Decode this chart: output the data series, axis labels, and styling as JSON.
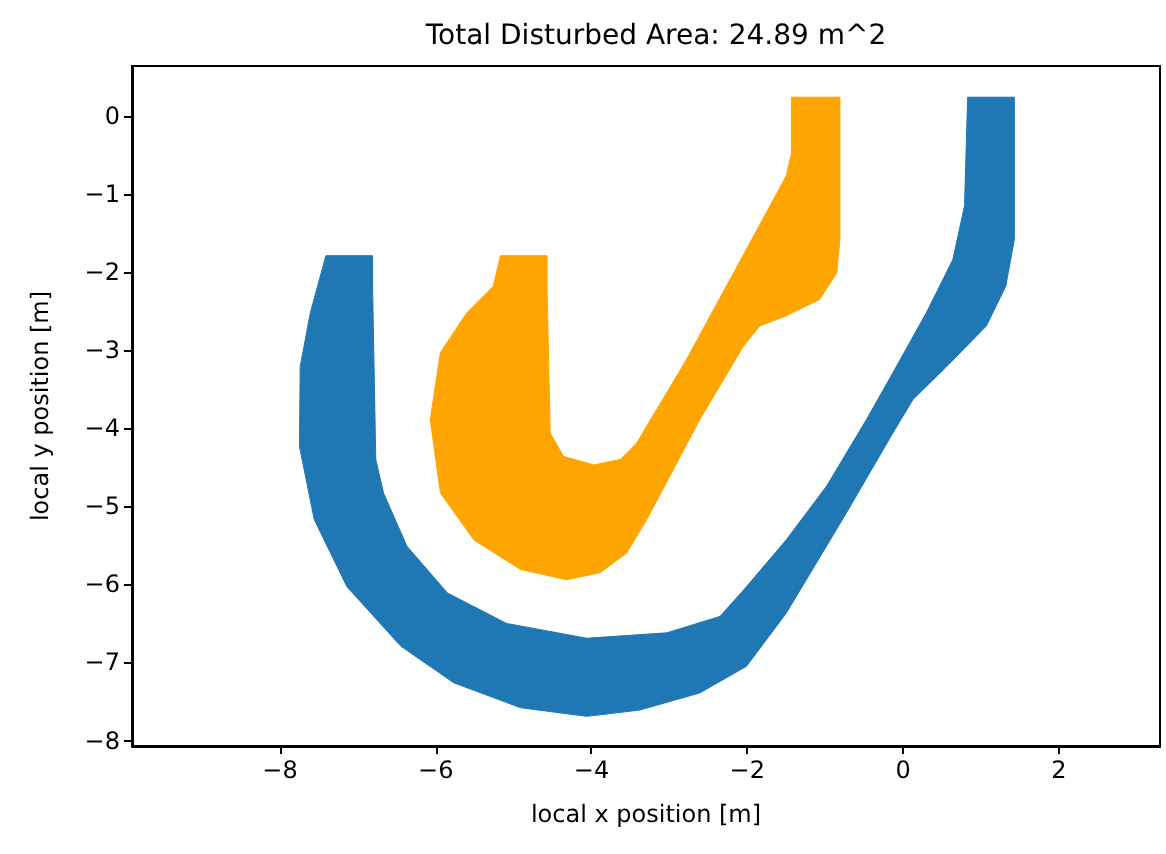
{
  "chart_data": {
    "type": "area",
    "title": "Total Disturbed Area: 24.89 m^2",
    "xlabel": "local x position [m]",
    "ylabel": "local y position [m]",
    "xlim": [
      -9.9,
      3.3
    ],
    "ylim": [
      -8.07,
      0.64
    ],
    "xticks": [
      {
        "value": -8,
        "label": "−8"
      },
      {
        "value": -6,
        "label": "−6"
      },
      {
        "value": -4,
        "label": "−4"
      },
      {
        "value": -2,
        "label": "−2"
      },
      0,
      2
    ],
    "yticks": [
      {
        "value": -8,
        "label": "−8"
      },
      {
        "value": -7,
        "label": "−7"
      },
      {
        "value": -6,
        "label": "−6"
      },
      {
        "value": -5,
        "label": "−5"
      },
      {
        "value": -4,
        "label": "−4"
      },
      {
        "value": -3,
        "label": "−3"
      },
      {
        "value": -2,
        "label": "−2"
      },
      {
        "value": -1,
        "label": "−1"
      },
      0
    ],
    "grid": false,
    "series": [
      {
        "color": "#1f77b4",
        "x": [
          -7.41,
          -6.81,
          -6.81,
          -6.77,
          -6.67,
          -6.37,
          -5.85,
          -5.09,
          -4.06,
          -3.03,
          -2.35,
          -2.01,
          -1.5,
          -0.98,
          -0.47,
          -0.13,
          0.3,
          0.64,
          0.79,
          0.83,
          1.43,
          1.43,
          1.32,
          1.07,
          0.56,
          0.13,
          -0.13,
          -0.73,
          -1.5,
          -2.01,
          -2.61,
          -3.38,
          -4.06,
          -4.91,
          -5.77,
          -6.45,
          -7.14,
          -7.56,
          -7.75,
          -7.74,
          -7.61
        ],
        "values": [
          -1.79,
          -1.79,
          -2.22,
          -4.4,
          -4.83,
          -5.51,
          -6.11,
          -6.5,
          -6.69,
          -6.62,
          -6.41,
          -6.03,
          -5.43,
          -4.74,
          -3.89,
          -3.29,
          -2.52,
          -1.84,
          -1.15,
          0.24,
          0.24,
          -1.58,
          -2.18,
          -2.69,
          -3.21,
          -3.63,
          -4.06,
          -5.09,
          -6.37,
          -7.05,
          -7.39,
          -7.61,
          -7.69,
          -7.58,
          -7.26,
          -6.79,
          -6.03,
          -5.17,
          -4.23,
          -3.21,
          -2.52
        ]
      },
      {
        "color": "#ffa500",
        "x": [
          -1.43,
          -0.81,
          -0.81,
          -0.85,
          -1.07,
          -1.5,
          -1.84,
          -2.05,
          -2.61,
          -3.29,
          -3.55,
          -3.89,
          -4.32,
          -4.91,
          -5.51,
          -5.94,
          -6.07,
          -5.94,
          -5.6,
          -5.26,
          -5.17,
          -4.57,
          -4.57,
          -4.53,
          -4.36,
          -3.97,
          -3.63,
          -3.42,
          -2.78,
          -1.5,
          -1.43
        ],
        "values": [
          0.24,
          0.24,
          -1.58,
          -2.01,
          -2.35,
          -2.56,
          -2.69,
          -2.95,
          -3.89,
          -5.17,
          -5.6,
          -5.85,
          -5.94,
          -5.81,
          -5.43,
          -4.83,
          -3.89,
          -3.03,
          -2.52,
          -2.18,
          -1.79,
          -1.79,
          -2.22,
          -4.06,
          -4.36,
          -4.47,
          -4.4,
          -4.19,
          -3.12,
          -0.77,
          -0.47
        ]
      }
    ]
  }
}
